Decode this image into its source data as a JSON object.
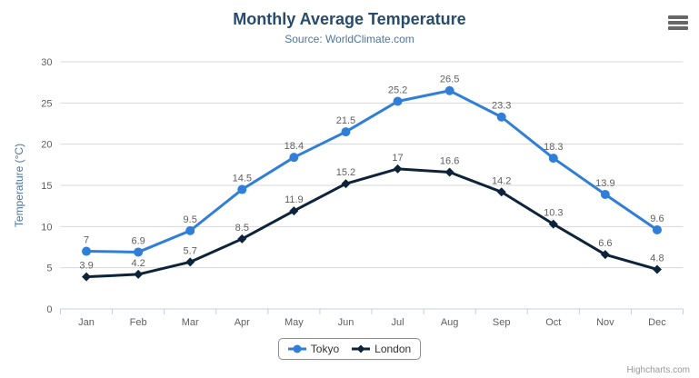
{
  "header": {
    "title": "Monthly Average Temperature",
    "subtitle": "Source: WorldClimate.com"
  },
  "menu": {
    "icon": "hamburger-icon"
  },
  "credits": {
    "label": "Highcharts.com"
  },
  "chart_data": {
    "type": "line",
    "categories": [
      "Jan",
      "Feb",
      "Mar",
      "Apr",
      "May",
      "Jun",
      "Jul",
      "Aug",
      "Sep",
      "Oct",
      "Nov",
      "Dec"
    ],
    "series": [
      {
        "name": "Tokyo",
        "color": "#2f7ed8",
        "marker": "circle",
        "values": [
          7,
          6.9,
          9.5,
          14.5,
          18.4,
          21.5,
          25.2,
          26.5,
          23.3,
          18.3,
          13.9,
          9.6
        ]
      },
      {
        "name": "London",
        "color": "#0d233a",
        "marker": "diamond",
        "values": [
          3.9,
          4.2,
          5.7,
          8.5,
          11.9,
          15.2,
          17,
          16.6,
          14.2,
          10.3,
          6.6,
          4.8
        ]
      }
    ],
    "title": "Monthly Average Temperature",
    "subtitle": "Source: WorldClimate.com",
    "xlabel": "",
    "ylabel": "Temperature (°C)",
    "ylim": [
      0,
      30
    ],
    "yticks": [
      0,
      5,
      10,
      15,
      20,
      25,
      30
    ],
    "grid": true,
    "legend_position": "bottom",
    "data_labels": true,
    "style": {
      "grid_color": "#d8d8d8",
      "axis_line_color": "#c0d0e0",
      "tick_label_color": "#606060",
      "data_label_color": "#606060",
      "axis_title_color": "#4d759e"
    }
  }
}
